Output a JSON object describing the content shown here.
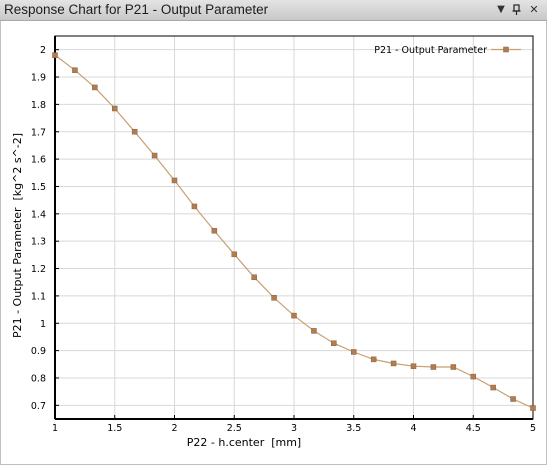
{
  "window": {
    "title": "Response Chart for P21 - Output Parameter"
  },
  "controls": {
    "dropdown_icon": "triangle-down-icon",
    "pin_icon": "pin-icon",
    "close_icon": "close-icon"
  },
  "chart_data": {
    "type": "line",
    "title": "",
    "xlabel": "P22 - h.center  [mm]",
    "ylabel": "P21 - Output Parameter  [kg^2 s^-2]",
    "xlim": [
      1,
      5
    ],
    "ylim": [
      0.65,
      2.05
    ],
    "x_ticks": [
      "1",
      "1.5",
      "2",
      "2.5",
      "3",
      "3.5",
      "4",
      "4.5",
      "5"
    ],
    "y_ticks": [
      "0.7",
      "0.8",
      "0.9",
      "1",
      "1.1",
      "1.2",
      "1.3",
      "1.4",
      "1.5",
      "1.6",
      "1.7",
      "1.8",
      "1.9",
      "2"
    ],
    "grid": true,
    "legend_position": "top-right",
    "series": [
      {
        "name": "P21 - Output Parameter",
        "color": "#c8a070",
        "marker_color": "#b07c50",
        "x": [
          1,
          1.1667,
          1.3333,
          1.5,
          1.6667,
          1.8333,
          2,
          2.1667,
          2.3333,
          2.5,
          2.6667,
          2.8333,
          3,
          3.1667,
          3.3333,
          3.5,
          3.6667,
          3.8333,
          4,
          4.1667,
          4.3333,
          4.5,
          4.6667,
          4.8333,
          5
        ],
        "y": [
          1.98,
          1.925,
          1.862,
          1.785,
          1.7,
          1.613,
          1.522,
          1.427,
          1.338,
          1.252,
          1.168,
          1.093,
          1.028,
          0.972,
          0.927,
          0.895,
          0.868,
          0.853,
          0.843,
          0.84,
          0.84,
          0.805,
          0.765,
          0.723,
          0.69
        ]
      }
    ]
  }
}
